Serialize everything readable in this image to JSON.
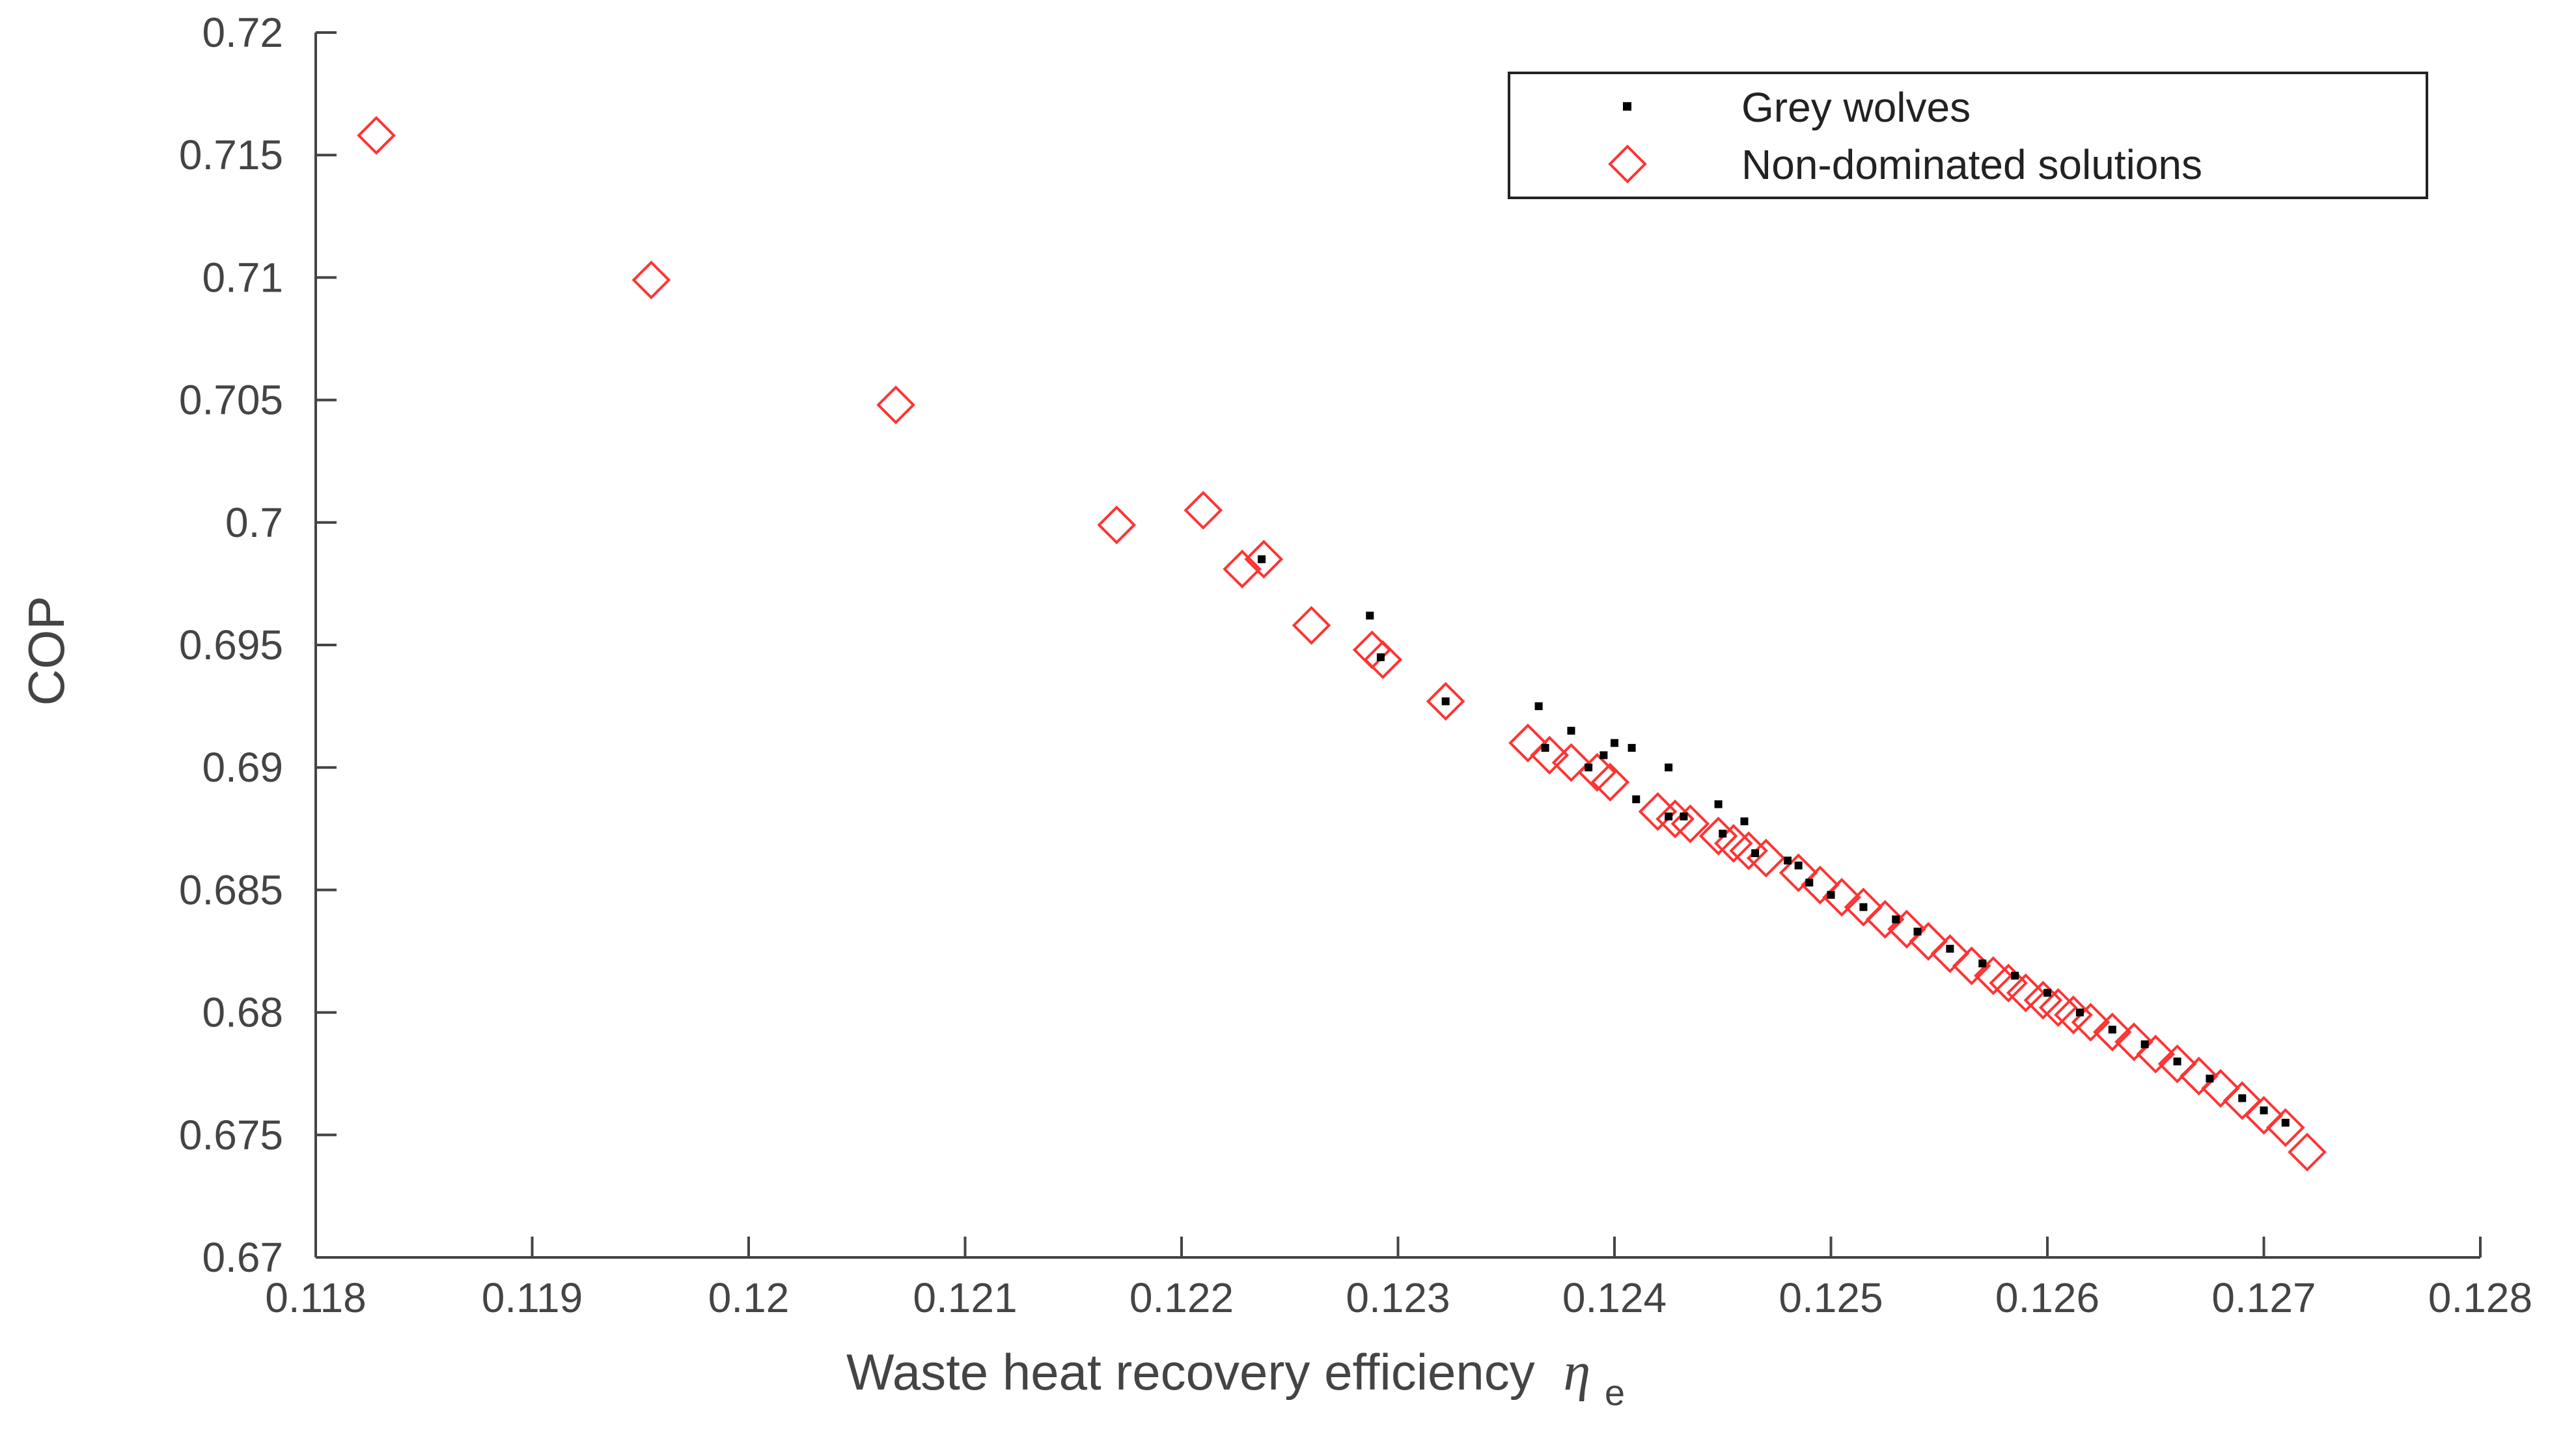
{
  "chart_data": {
    "type": "scatter",
    "title": "",
    "xlabel": "Waste heat recovery efficiency",
    "xlabel_symbol": "η",
    "xlabel_subscript": "e",
    "ylabel": "COP",
    "xlim": [
      0.118,
      0.128
    ],
    "ylim": [
      0.67,
      0.72
    ],
    "xticks": [
      "0.118",
      "0.119",
      "0.12",
      "0.121",
      "0.122",
      "0.123",
      "0.124",
      "0.125",
      "0.126",
      "0.127",
      "0.128"
    ],
    "yticks": [
      "0.67",
      "0.675",
      "0.68",
      "0.685",
      "0.69",
      "0.695",
      "0.7",
      "0.705",
      "0.71",
      "0.715",
      "0.72"
    ],
    "grid": false,
    "legend_position": "top-right",
    "colors": {
      "axis": "#444444",
      "wolves": "#000000",
      "nondominated": "#ff3333"
    },
    "series": [
      {
        "name": "Grey wolves",
        "marker": "dot",
        "points": [
          [
            0.12237,
            0.6985
          ],
          [
            0.12287,
            0.6962
          ],
          [
            0.12292,
            0.6945
          ],
          [
            0.12322,
            0.6927
          ],
          [
            0.12365,
            0.6925
          ],
          [
            0.12368,
            0.6908
          ],
          [
            0.1238,
            0.6915
          ],
          [
            0.12388,
            0.69
          ],
          [
            0.12395,
            0.6905
          ],
          [
            0.124,
            0.691
          ],
          [
            0.12408,
            0.6908
          ],
          [
            0.1241,
            0.6887
          ],
          [
            0.12425,
            0.69
          ],
          [
            0.12425,
            0.688
          ],
          [
            0.12432,
            0.688
          ],
          [
            0.12448,
            0.6885
          ],
          [
            0.1245,
            0.6873
          ],
          [
            0.1246,
            0.6878
          ],
          [
            0.12465,
            0.6865
          ],
          [
            0.1248,
            0.6862
          ],
          [
            0.12485,
            0.686
          ],
          [
            0.1249,
            0.6853
          ],
          [
            0.125,
            0.6848
          ],
          [
            0.12515,
            0.6843
          ],
          [
            0.1253,
            0.6838
          ],
          [
            0.1254,
            0.6833
          ],
          [
            0.12555,
            0.6826
          ],
          [
            0.1257,
            0.682
          ],
          [
            0.12585,
            0.6815
          ],
          [
            0.126,
            0.6808
          ],
          [
            0.12615,
            0.68
          ],
          [
            0.1263,
            0.6793
          ],
          [
            0.12645,
            0.6787
          ],
          [
            0.1266,
            0.678
          ],
          [
            0.12675,
            0.6773
          ],
          [
            0.1269,
            0.6765
          ],
          [
            0.127,
            0.676
          ],
          [
            0.1271,
            0.6755
          ]
        ]
      },
      {
        "name": "Non-dominated solutions",
        "marker": "diamond",
        "points": [
          [
            0.11828,
            0.7158
          ],
          [
            0.11955,
            0.7099
          ],
          [
            0.12068,
            0.7048
          ],
          [
            0.1217,
            0.6999
          ],
          [
            0.1221,
            0.7005
          ],
          [
            0.12228,
            0.6981
          ],
          [
            0.12238,
            0.6985
          ],
          [
            0.1226,
            0.6958
          ],
          [
            0.12288,
            0.6948
          ],
          [
            0.12293,
            0.6944
          ],
          [
            0.12322,
            0.6927
          ],
          [
            0.1236,
            0.691
          ],
          [
            0.1237,
            0.6905
          ],
          [
            0.1238,
            0.6902
          ],
          [
            0.12392,
            0.6898
          ],
          [
            0.12398,
            0.6894
          ],
          [
            0.1242,
            0.6882
          ],
          [
            0.12428,
            0.6879
          ],
          [
            0.12435,
            0.6877
          ],
          [
            0.12448,
            0.6872
          ],
          [
            0.12455,
            0.6869
          ],
          [
            0.12462,
            0.6866
          ],
          [
            0.1247,
            0.6863
          ],
          [
            0.12485,
            0.6857
          ],
          [
            0.12495,
            0.6852
          ],
          [
            0.12505,
            0.6847
          ],
          [
            0.12515,
            0.6843
          ],
          [
            0.12525,
            0.6838
          ],
          [
            0.12535,
            0.6834
          ],
          [
            0.12545,
            0.6829
          ],
          [
            0.12555,
            0.6824
          ],
          [
            0.12565,
            0.6819
          ],
          [
            0.12575,
            0.6815
          ],
          [
            0.12582,
            0.6812
          ],
          [
            0.1259,
            0.6808
          ],
          [
            0.12598,
            0.6805
          ],
          [
            0.12605,
            0.6802
          ],
          [
            0.12612,
            0.6799
          ],
          [
            0.1262,
            0.6796
          ],
          [
            0.1263,
            0.6792
          ],
          [
            0.1264,
            0.6788
          ],
          [
            0.1265,
            0.6783
          ],
          [
            0.1266,
            0.6779
          ],
          [
            0.1267,
            0.6774
          ],
          [
            0.1268,
            0.6769
          ],
          [
            0.1269,
            0.6764
          ],
          [
            0.127,
            0.6758
          ],
          [
            0.1271,
            0.6753
          ],
          [
            0.1272,
            0.6743
          ]
        ]
      }
    ]
  }
}
